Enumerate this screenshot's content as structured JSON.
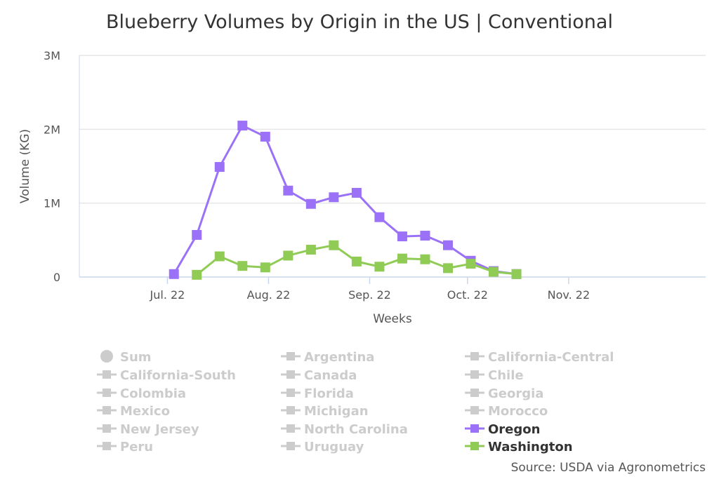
{
  "chart_data": {
    "type": "line",
    "title": "Blueberry Volumes by Origin in the US | Conventional",
    "xlabel": "Weeks",
    "ylabel": "Volume (KG)",
    "ylim": [
      0,
      3000000
    ],
    "yticks": [
      "0",
      "1M",
      "2M",
      "3M"
    ],
    "xlim": [
      "2022-06-04",
      "2022-12-13"
    ],
    "xticks": [
      {
        "date": "2022-07-01",
        "label": "Jul. 22"
      },
      {
        "date": "2022-08-01",
        "label": "Aug. 22"
      },
      {
        "date": "2022-09-01",
        "label": "Sep. 22"
      },
      {
        "date": "2022-10-01",
        "label": "Oct. 22"
      },
      {
        "date": "2022-11-01",
        "label": "Nov. 22"
      }
    ],
    "grid": true,
    "legend_placement": "bottom",
    "series": [
      {
        "name": "Oregon",
        "color": "#9b72f7",
        "x": [
          "2022-07-03",
          "2022-07-10",
          "2022-07-17",
          "2022-07-24",
          "2022-07-31",
          "2022-08-07",
          "2022-08-14",
          "2022-08-21",
          "2022-08-28",
          "2022-09-04",
          "2022-09-11",
          "2022-09-18",
          "2022-09-25",
          "2022-10-02",
          "2022-10-09",
          "2022-10-16"
        ],
        "values": [
          40000,
          570000,
          1490000,
          2050000,
          1900000,
          1170000,
          990000,
          1080000,
          1140000,
          810000,
          550000,
          560000,
          430000,
          220000,
          80000,
          40000
        ]
      },
      {
        "name": "Washington",
        "color": "#8fcb55",
        "x": [
          "2022-07-10",
          "2022-07-17",
          "2022-07-24",
          "2022-07-31",
          "2022-08-07",
          "2022-08-14",
          "2022-08-21",
          "2022-08-28",
          "2022-09-04",
          "2022-09-11",
          "2022-09-18",
          "2022-09-25",
          "2022-10-02",
          "2022-10-09",
          "2022-10-16"
        ],
        "values": [
          30000,
          280000,
          150000,
          130000,
          290000,
          370000,
          430000,
          210000,
          140000,
          250000,
          240000,
          120000,
          180000,
          70000,
          40000
        ]
      }
    ],
    "legend": [
      {
        "label": "Sum",
        "active": false,
        "symbol": "circle"
      },
      {
        "label": "Argentina",
        "active": false
      },
      {
        "label": "California-Central",
        "active": false
      },
      {
        "label": "California-South",
        "active": false
      },
      {
        "label": "Canada",
        "active": false
      },
      {
        "label": "Chile",
        "active": false
      },
      {
        "label": "Colombia",
        "active": false
      },
      {
        "label": "Florida",
        "active": false
      },
      {
        "label": "Georgia",
        "active": false
      },
      {
        "label": "Mexico",
        "active": false
      },
      {
        "label": "Michigan",
        "active": false
      },
      {
        "label": "Morocco",
        "active": false
      },
      {
        "label": "New Jersey",
        "active": false
      },
      {
        "label": "North Carolina",
        "active": false
      },
      {
        "label": "Oregon",
        "active": true,
        "color": "#9b72f7"
      },
      {
        "label": "Peru",
        "active": false
      },
      {
        "label": "Uruguay",
        "active": false
      },
      {
        "label": "Washington",
        "active": true,
        "color": "#8fcb55"
      }
    ],
    "credits": "Source: USDA via Agronometrics"
  }
}
